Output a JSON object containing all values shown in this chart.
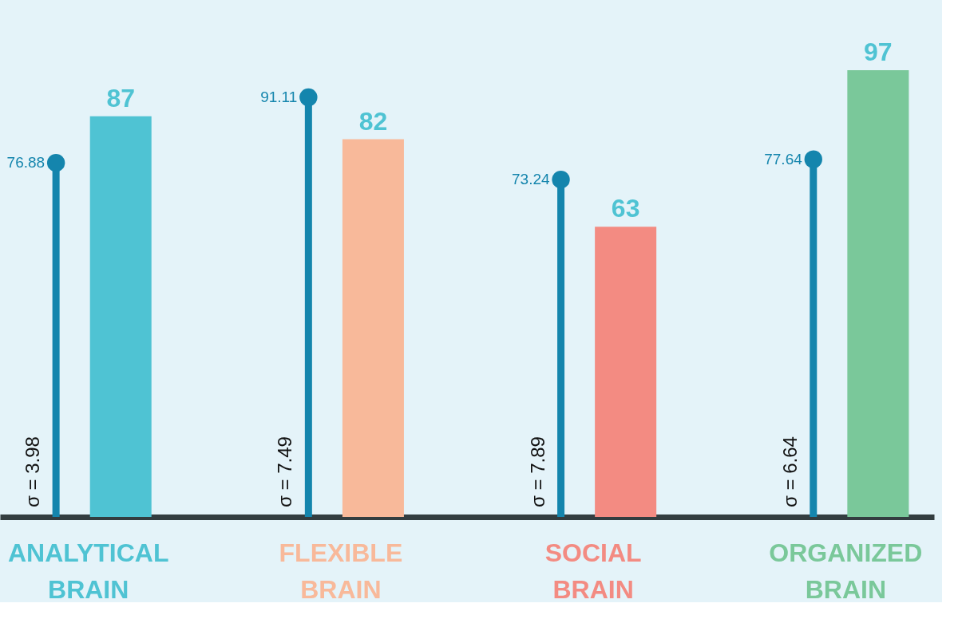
{
  "chart_data": {
    "type": "bar",
    "categories": [
      "ANALYTICAL BRAIN",
      "FLEXIBLE BRAIN",
      "SOCIAL BRAIN",
      "ORGANIZED BRAIN"
    ],
    "series": [
      {
        "type": "lollipop",
        "color": "#1485ad",
        "values": [
          76.88,
          91.11,
          73.24,
          77.64
        ]
      },
      {
        "colors": [
          "#4fc3d3",
          "#f8b99a",
          "#f38b82",
          "#7ac89a"
        ],
        "values": [
          87,
          82,
          63,
          97
        ]
      }
    ],
    "annotations": [
      "σ = 3.98",
      "σ = 7.49",
      "σ = 7.89",
      "σ = 6.64"
    ],
    "tick_labels": "x",
    "grid": false,
    "legend": false,
    "data_labels": true
  }
}
